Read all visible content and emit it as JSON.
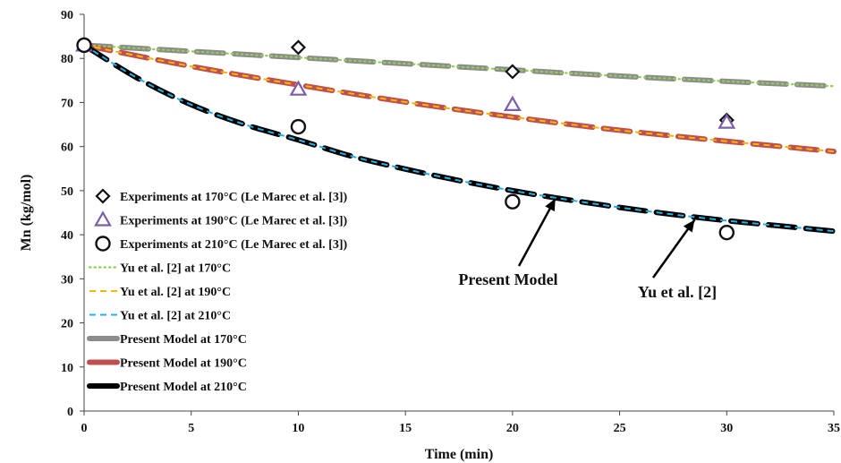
{
  "chart_data": {
    "type": "line",
    "title": "",
    "xlabel": "Time (min)",
    "ylabel": "Mn (kg/mol)",
    "xlim": [
      0,
      35
    ],
    "ylim": [
      0,
      90
    ],
    "xticks": [
      0,
      5,
      10,
      15,
      20,
      25,
      30,
      35
    ],
    "yticks": [
      0,
      10,
      20,
      30,
      40,
      50,
      60,
      70,
      80,
      90
    ],
    "grid": false,
    "legend_position": "left",
    "series": [
      {
        "name": "Experiments at 170°C (Le Marec et al. [3])",
        "kind": "markers",
        "marker": "diamond",
        "color": "#111111",
        "x": [
          0,
          10,
          20,
          30
        ],
        "y": [
          83,
          82.5,
          77,
          66
        ]
      },
      {
        "name": "Experiments at 190°C (Le Marec et al. [3])",
        "kind": "markers",
        "marker": "triangle",
        "color": "#7b5ea7",
        "x": [
          0,
          10,
          20,
          30
        ],
        "y": [
          83,
          73,
          69.5,
          65.5
        ]
      },
      {
        "name": "Experiments at 210°C (Le Marec et al. [3])",
        "kind": "markers",
        "marker": "circle",
        "color": "#111111",
        "x": [
          0,
          10,
          20,
          30
        ],
        "y": [
          83,
          64.5,
          47.5,
          40.5
        ]
      },
      {
        "name": "Yu et al. [2] at 170°C",
        "kind": "dotted",
        "color": "#92d050",
        "x": [
          0,
          5,
          10,
          15,
          20,
          25,
          30,
          35
        ],
        "y": [
          83,
          81.6,
          80.2,
          78.8,
          77.4,
          76,
          74.8,
          73.7
        ]
      },
      {
        "name": "Yu et al. [2] at 190°C",
        "kind": "dashed",
        "color": "#f5b800",
        "x": [
          0,
          5,
          10,
          15,
          20,
          25,
          30,
          35
        ],
        "y": [
          83,
          78.2,
          74,
          70.1,
          66.7,
          63.7,
          61.2,
          58.9
        ]
      },
      {
        "name": "Yu et al. [2] at 210°C",
        "kind": "dashed",
        "color": "#23b1e6",
        "x": [
          0,
          2.5,
          5,
          7.5,
          10,
          12.5,
          15,
          17.5,
          20,
          22.5,
          25,
          27.5,
          30,
          32.5,
          35
        ],
        "y": [
          83,
          75.5,
          69.5,
          65,
          61.5,
          57.8,
          54.9,
          52.3,
          50,
          48,
          46.2,
          44.6,
          43.2,
          42,
          40.8
        ]
      },
      {
        "name": "Present Model at 170°C",
        "kind": "heavy",
        "color": "#8c8c8c",
        "x": [
          0,
          5,
          10,
          15,
          20,
          25,
          30,
          35
        ],
        "y": [
          83,
          81.6,
          80.2,
          78.8,
          77.4,
          76,
          74.8,
          73.7
        ]
      },
      {
        "name": "Present Model at 190°C",
        "kind": "heavy",
        "color": "#c0504d",
        "x": [
          0,
          5,
          10,
          15,
          20,
          25,
          30,
          35
        ],
        "y": [
          83,
          78.2,
          74,
          70.1,
          66.7,
          63.7,
          61.2,
          58.9
        ]
      },
      {
        "name": "Present Model at 210°C",
        "kind": "heavy",
        "color": "#000000",
        "x": [
          0,
          2.5,
          5,
          7.5,
          10,
          12.5,
          15,
          17.5,
          20,
          22.5,
          25,
          27.5,
          30,
          32.5,
          35
        ],
        "y": [
          83,
          75.5,
          69.5,
          65,
          61.5,
          57.8,
          54.9,
          52.3,
          50,
          48,
          46.2,
          44.6,
          43.2,
          42,
          40.8
        ]
      }
    ],
    "annotations": [
      {
        "text": "Present Model",
        "arrow_to": [
          22,
          49
        ]
      },
      {
        "text": "Yu et al. [2]",
        "arrow_to": [
          28.5,
          44.2
        ]
      }
    ]
  }
}
